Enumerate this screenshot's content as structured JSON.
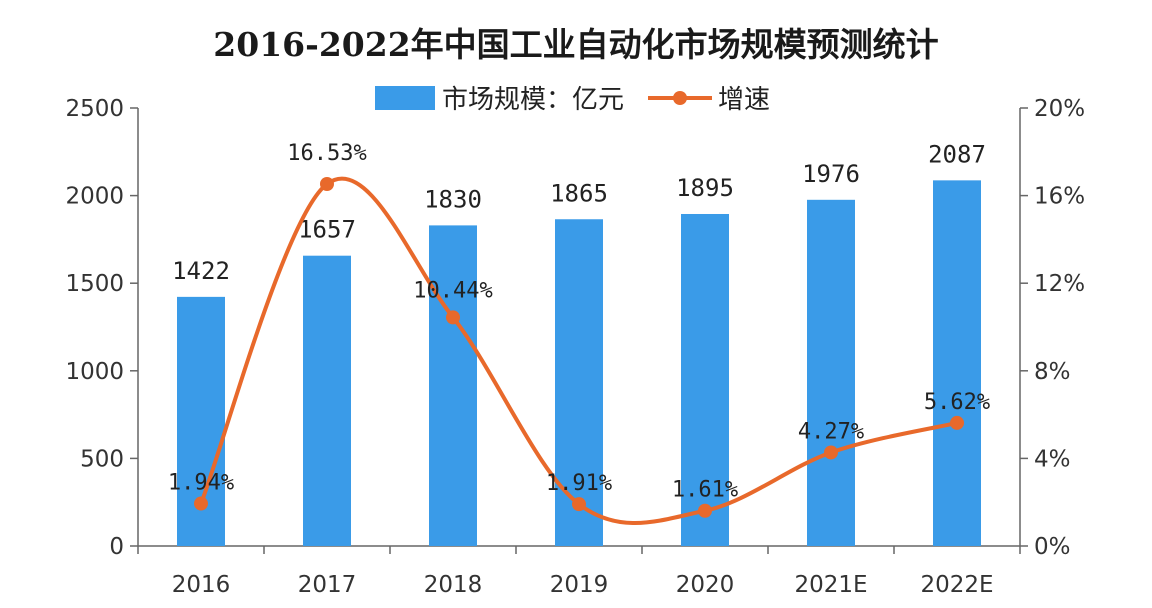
{
  "chart_data": {
    "type": "bar",
    "title": "2016-2022年中国工业自动化市场规模预测统计",
    "categories": [
      "2016",
      "2017",
      "2018",
      "2019",
      "2020",
      "2021E",
      "2022E"
    ],
    "series": [
      {
        "name": "市场规模：亿元",
        "type": "bar",
        "axis": "left",
        "values": [
          1422,
          1657,
          1830,
          1865,
          1895,
          1976,
          2087
        ],
        "labels": [
          "1422",
          "1657",
          "1830",
          "1865",
          "1895",
          "1976",
          "2087"
        ]
      },
      {
        "name": "增速",
        "type": "line",
        "axis": "right",
        "values": [
          1.94,
          16.53,
          10.44,
          1.91,
          1.61,
          4.27,
          5.62
        ],
        "labels": [
          "1.94%",
          "16.53%",
          "10.44%",
          "1.91%",
          "1.61%",
          "4.27%",
          "5.62%"
        ]
      }
    ],
    "y_left": {
      "min": 0,
      "max": 2500,
      "ticks": [
        "0",
        "500",
        "1000",
        "1500",
        "2000",
        "2500"
      ]
    },
    "y_right": {
      "min": 0,
      "max": 20,
      "unit": "%",
      "ticks": [
        "0%",
        "4%",
        "8%",
        "12%",
        "16%",
        "20%"
      ]
    },
    "legend": "top-center",
    "grid": false,
    "colors": {
      "bar": "#3a9be8",
      "line": "#e8692b",
      "marker": "#e8692b"
    }
  }
}
